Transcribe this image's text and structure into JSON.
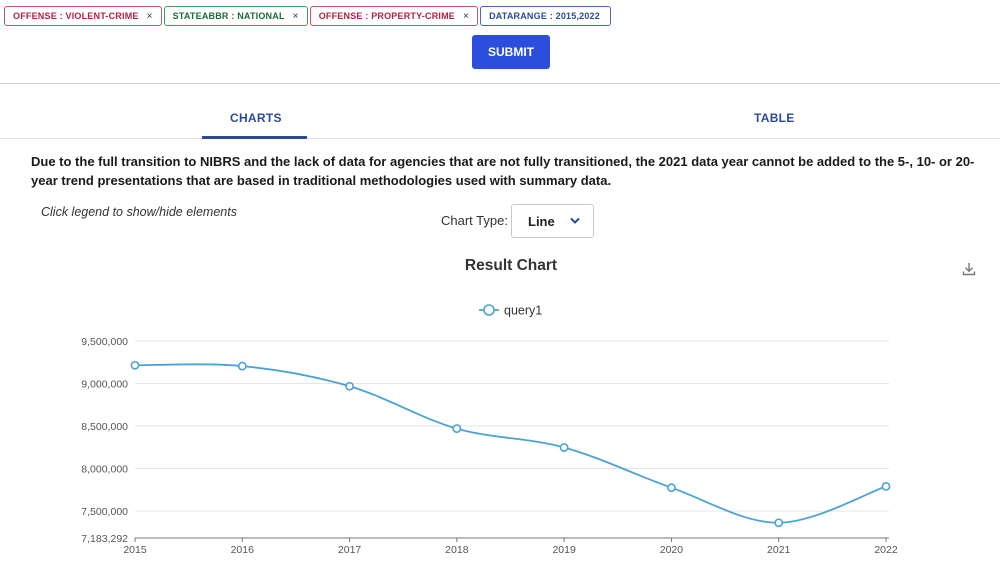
{
  "filters": [
    {
      "label": "OFFENSE : VIOLENT-CRIME",
      "remove": "×",
      "color": "#b32046"
    },
    {
      "label": "STATEABBR : NATIONAL",
      "remove": "×",
      "color": "#1e6b36"
    },
    {
      "label": "OFFENSE : PROPERTY-CRIME",
      "remove": "×",
      "color": "#b32046"
    },
    {
      "label": "DATARANGE : 2015,2022",
      "color": "#2c4a9c"
    }
  ],
  "submit_label": "SUBMIT",
  "tabs": [
    {
      "label": "CHARTS",
      "active": true
    },
    {
      "label": "TABLE",
      "active": false
    }
  ],
  "notice": "Due to the full transition to NIBRS and the lack of data for agencies that are not fully transitioned, the 2021 data year cannot be added to the 5-, 10- or 20-year trend presentations that are based in traditional methodologies used with summary data.",
  "legend_hint": "Click legend to show/hide elements",
  "chart_type": {
    "label": "Chart Type:",
    "value": "Line"
  },
  "icons": {
    "download": "download-icon",
    "chevron": "chevron-down-icon",
    "remove": "close-icon"
  },
  "accent_color": "#2b4fdc",
  "chart_data": {
    "type": "line",
    "title": "Result Chart",
    "x": [
      "2015",
      "2016",
      "2017",
      "2018",
      "2019",
      "2020",
      "2021",
      "2022"
    ],
    "series": [
      {
        "name": "query1",
        "color": "#4aa3d4",
        "values": [
          9215000,
          9205000,
          8968000,
          8470000,
          8248000,
          7775000,
          7363000,
          7790000
        ]
      }
    ],
    "ylim": [
      7183292,
      9500000
    ],
    "yticks": [
      7183292,
      7500000,
      8000000,
      8500000,
      9000000,
      9500000
    ],
    "ytick_labels": [
      "7,183,292",
      "7,500,000",
      "8,000,000",
      "8,500,000",
      "9,000,000",
      "9,500,000"
    ],
    "xlabel": "",
    "ylabel": "",
    "grid": true,
    "legend": "top-center"
  }
}
